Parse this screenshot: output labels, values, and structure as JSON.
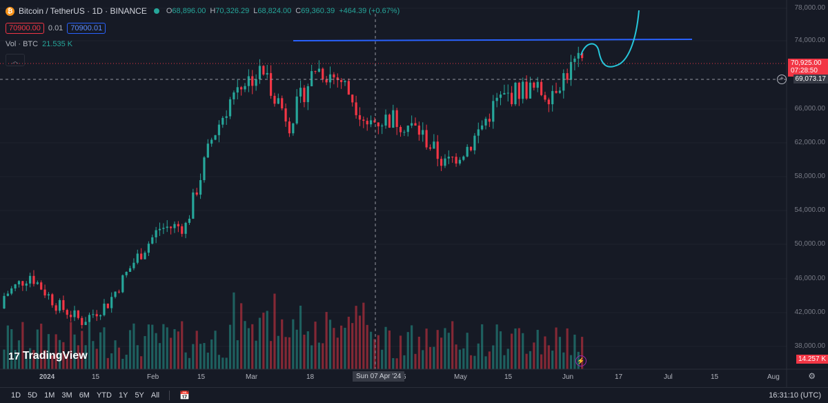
{
  "header": {
    "title": "Bitcoin / TetherUS · 1D · BINANCE",
    "open_label": "O",
    "open": "68,896.00",
    "high_label": "H",
    "high": "70,326.29",
    "low_label": "L",
    "low": "68,824.00",
    "close_label": "C",
    "close": "69,360.39",
    "change": "+464.39 (+0.67%)",
    "sell_price": "70900.00",
    "spread": "0.01",
    "buy_price": "70900.01",
    "vol_label": "Vol · BTC",
    "vol_value": "21.535 K"
  },
  "price_axis": {
    "labels": [
      "78,000.00",
      "74,000.00",
      "66,000.00",
      "62,000.00",
      "58,000.00",
      "54,000.00",
      "50,000.00",
      "46,000.00",
      "42,000.00",
      "38,000.00"
    ],
    "last_price": "70,925.00",
    "countdown": "07:28:50",
    "crosshair_price": "69,073.17",
    "volume_tag": "14.257 K"
  },
  "time_axis": {
    "labels": [
      "2024",
      "15",
      "Feb",
      "15",
      "Mar",
      "18",
      "5",
      "May",
      "15",
      "Jun",
      "17",
      "Jul",
      "15",
      "Aug"
    ],
    "hover_date": "Sun 07 Apr '24"
  },
  "bottom_bar": {
    "ranges": [
      "1D",
      "5D",
      "1M",
      "3M",
      "6M",
      "YTD",
      "1Y",
      "5Y",
      "All"
    ],
    "clock": "16:31:10 (UTC)"
  },
  "branding": {
    "logo_text": "TradingView"
  },
  "colors": {
    "up": "#26a69a",
    "down": "#f23645",
    "trendline": "#2962ff",
    "drawing": "#26c6da",
    "background": "#161a25"
  },
  "chart_data": {
    "type": "candlestick",
    "symbol": "BTCUSDT",
    "interval": "1D",
    "ylim": [
      36000,
      78000
    ],
    "resistance_level": 73600,
    "dates": [
      "2024-01-01",
      "2024-01-08",
      "2024-01-15",
      "2024-01-22",
      "2024-01-29",
      "2024-02-05",
      "2024-02-12",
      "2024-02-19",
      "2024-02-26",
      "2024-03-04",
      "2024-03-11",
      "2024-03-18",
      "2024-03-25",
      "2024-04-01",
      "2024-04-08",
      "2024-04-15",
      "2024-04-22",
      "2024-04-29",
      "2024-05-06",
      "2024-05-13",
      "2024-05-20",
      "2024-05-27",
      "2024-06-03"
    ],
    "closes": [
      43500,
      46000,
      42500,
      40500,
      42600,
      47500,
      51500,
      51800,
      62000,
      68500,
      70000,
      64000,
      70500,
      69000,
      64000,
      64500,
      63000,
      59000,
      61500,
      66500,
      68000,
      67500,
      70900
    ]
  }
}
